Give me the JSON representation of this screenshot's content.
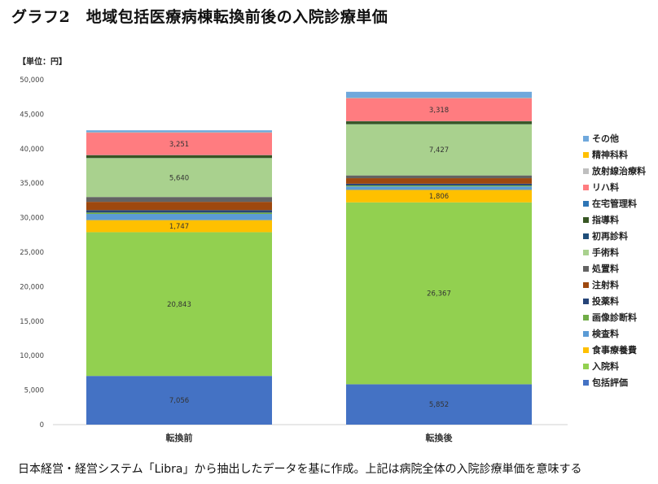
{
  "title": "グラフ2　地域包括医療病棟転換前後の入院診療単価",
  "unit_label": "【単位：円】",
  "footer": "日本経営・経営システム「Libra」から抽出したデータを基に作成。上記は病院全体の入院診療単価を意味する",
  "chart_data": {
    "type": "bar",
    "stacked": true,
    "categories": [
      "転換前",
      "転換後"
    ],
    "ylim": [
      0,
      50000
    ],
    "yticks": [
      0,
      5000,
      10000,
      15000,
      20000,
      25000,
      30000,
      35000,
      40000,
      45000,
      50000
    ],
    "ytick_labels": [
      "0",
      "5,000",
      "10,000",
      "15,000",
      "20,000",
      "25,000",
      "30,000",
      "35,000",
      "40,000",
      "45,000",
      "50,000"
    ],
    "grid": false,
    "legend_position": "right",
    "series": [
      {
        "name": "包括評価",
        "color": "#4472c4",
        "values": [
          7056,
          5852
        ],
        "labels": [
          "7,056",
          "5,852"
        ]
      },
      {
        "name": "入院料",
        "color": "#92d050",
        "values": [
          20843,
          26367
        ],
        "labels": [
          "20,843",
          "26,367"
        ]
      },
      {
        "name": "食事療養費",
        "color": "#ffc000",
        "values": [
          1747,
          1806
        ],
        "labels": [
          "1,747",
          "1,806"
        ]
      },
      {
        "name": "検査料",
        "color": "#5b9bd5",
        "values": [
          900,
          500
        ],
        "labels": [
          "",
          ""
        ]
      },
      {
        "name": "画像診断料",
        "color": "#70ad47",
        "values": [
          200,
          150
        ],
        "labels": [
          "",
          ""
        ]
      },
      {
        "name": "投薬料",
        "color": "#264478",
        "values": [
          350,
          250
        ],
        "labels": [
          "",
          ""
        ]
      },
      {
        "name": "注射料",
        "color": "#9e480e",
        "values": [
          1200,
          800
        ],
        "labels": [
          "",
          ""
        ]
      },
      {
        "name": "処置料",
        "color": "#636363",
        "values": [
          700,
          400
        ],
        "labels": [
          "",
          ""
        ]
      },
      {
        "name": "手術料",
        "color": "#a9d18e",
        "values": [
          5640,
          7427
        ],
        "labels": [
          "5,640",
          "7,427"
        ]
      },
      {
        "name": "初再診料",
        "color": "#1f4e79",
        "values": [
          20,
          20
        ],
        "labels": [
          "",
          ""
        ]
      },
      {
        "name": "指導料",
        "color": "#375623",
        "values": [
          400,
          400
        ],
        "labels": [
          "",
          ""
        ]
      },
      {
        "name": "在宅管理料",
        "color": "#2e75b6",
        "values": [
          20,
          20
        ],
        "labels": [
          "",
          ""
        ]
      },
      {
        "name": "リハ料",
        "color": "#ff7c80",
        "values": [
          3251,
          3318
        ],
        "labels": [
          "3,251",
          "3,318"
        ]
      },
      {
        "name": "放射線治療料",
        "color": "#bfbfbf",
        "values": [
          20,
          20
        ],
        "labels": [
          "",
          ""
        ]
      },
      {
        "name": "精神科料",
        "color": "#ffc000",
        "values": [
          20,
          20
        ],
        "labels": [
          "",
          ""
        ]
      },
      {
        "name": "その他",
        "color": "#6fa8dc",
        "values": [
          300,
          900
        ],
        "labels": [
          "",
          ""
        ]
      }
    ]
  }
}
